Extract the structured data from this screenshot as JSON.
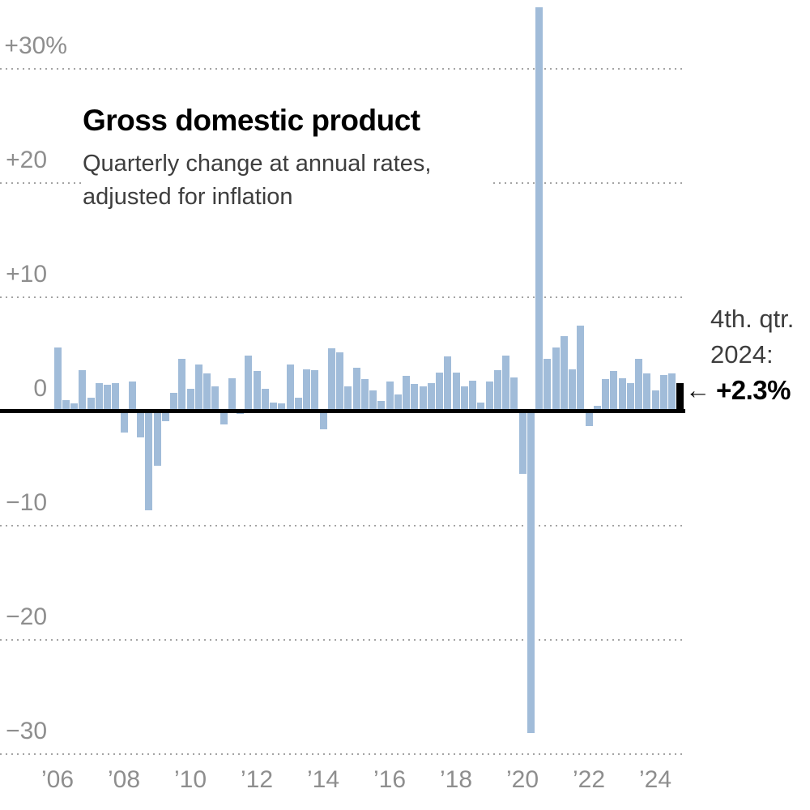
{
  "header": {
    "title": "Gross domestic product",
    "subtitle_line1": "Quarterly change at annual rates,",
    "subtitle_line2": "adjusted for inflation"
  },
  "annotation": {
    "line1": "4th. qtr.",
    "line2": "2024:",
    "arrow": "←",
    "value_label": "+2.3%"
  },
  "colors": {
    "bar": "#a1bcd9",
    "highlight_bar": "#000000",
    "axis_line": "#000000",
    "gridline": "#a4a4a4",
    "tick_text": "#8e8e8e",
    "subtitle_text": "#3e3e3e"
  },
  "chart_data": {
    "type": "bar",
    "title": "Gross domestic product",
    "subtitle": "Quarterly change at annual rates, adjusted for inflation",
    "unit": "percent, annualized quarterly change",
    "grid": "dotted horizontal lines every 10 units",
    "legend_position": "none",
    "ylim": [
      -30,
      36
    ],
    "yticks": [
      {
        "label": "+30%",
        "value": 30
      },
      {
        "label": "+20",
        "value": 20
      },
      {
        "label": "+10",
        "value": 10
      },
      {
        "label": "0",
        "value": 0
      },
      {
        "label": "−10",
        "value": -10
      },
      {
        "label": "−20",
        "value": -20
      },
      {
        "label": "−30",
        "value": -30
      }
    ],
    "xticks": [
      {
        "label": "’06",
        "year": 2006
      },
      {
        "label": "’08",
        "year": 2008
      },
      {
        "label": "’10",
        "year": 2010
      },
      {
        "label": "’12",
        "year": 2012
      },
      {
        "label": "’14",
        "year": 2014
      },
      {
        "label": "’16",
        "year": 2016
      },
      {
        "label": "’18",
        "year": 2018
      },
      {
        "label": "’20",
        "year": 2020
      },
      {
        "label": "’22",
        "year": 2022
      },
      {
        "label": "’24",
        "year": 2024
      }
    ],
    "quarters": [
      "Q1",
      "Q2",
      "Q3",
      "Q4"
    ],
    "series": [
      {
        "year": 2006,
        "values": [
          5.4,
          0.8,
          0.5,
          3.4
        ]
      },
      {
        "year": 2007,
        "values": [
          1.0,
          2.3,
          2.1,
          2.3
        ]
      },
      {
        "year": 2008,
        "values": [
          -1.7,
          2.4,
          -2.1,
          -8.5
        ]
      },
      {
        "year": 2009,
        "values": [
          -4.6,
          -0.7,
          1.4,
          4.4
        ]
      },
      {
        "year": 2010,
        "values": [
          1.8,
          3.9,
          3.1,
          2.0
        ]
      },
      {
        "year": 2011,
        "values": [
          -1.0,
          2.7,
          -0.1,
          4.7
        ]
      },
      {
        "year": 2012,
        "values": [
          3.3,
          1.8,
          0.6,
          0.5
        ]
      },
      {
        "year": 2013,
        "values": [
          3.9,
          1.0,
          3.5,
          3.4
        ]
      },
      {
        "year": 2014,
        "values": [
          -1.4,
          5.3,
          5.0,
          2.0
        ]
      },
      {
        "year": 2015,
        "values": [
          3.6,
          2.6,
          1.6,
          0.7
        ]
      },
      {
        "year": 2016,
        "values": [
          2.4,
          1.3,
          2.9,
          2.2
        ]
      },
      {
        "year": 2017,
        "values": [
          2.0,
          2.3,
          3.2,
          4.6
        ]
      },
      {
        "year": 2018,
        "values": [
          3.2,
          2.0,
          2.5,
          0.6
        ]
      },
      {
        "year": 2019,
        "values": [
          2.4,
          3.4,
          4.7,
          2.8
        ]
      },
      {
        "year": 2020,
        "values": [
          -5.3,
          -28.0,
          35.2,
          4.4
        ]
      },
      {
        "year": 2021,
        "values": [
          5.4,
          6.4,
          3.5,
          7.3
        ]
      },
      {
        "year": 2022,
        "values": [
          -1.1,
          0.3,
          2.6,
          3.3
        ]
      },
      {
        "year": 2023,
        "values": [
          2.7,
          2.3,
          4.4,
          3.1
        ]
      },
      {
        "year": 2024,
        "values": [
          1.6,
          3.0,
          3.1,
          2.3
        ]
      }
    ],
    "highlight": {
      "year": 2024,
      "quarter": "Q4",
      "numeric": 2.3,
      "label": "4th. qtr. 2024: +2.3%",
      "color": "#000000"
    }
  }
}
